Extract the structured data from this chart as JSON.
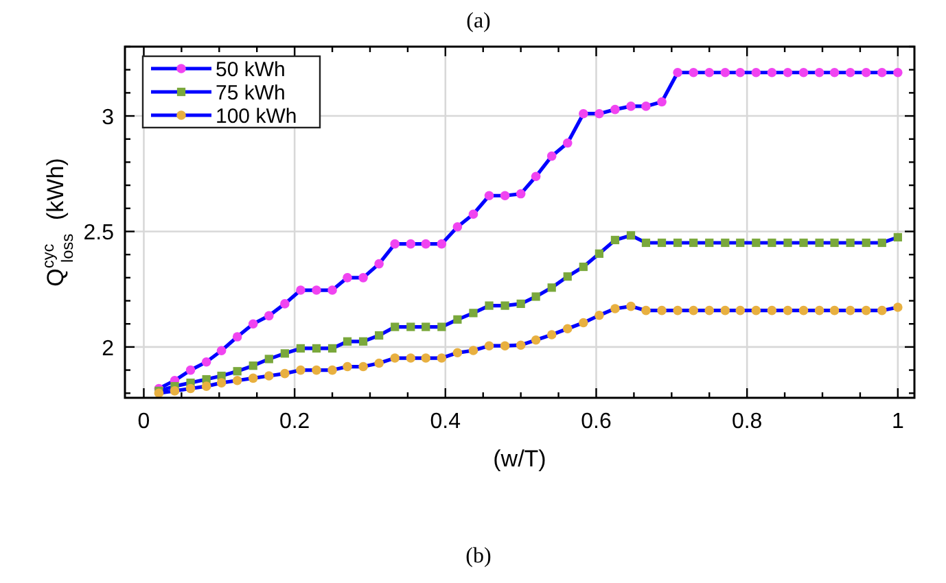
{
  "chart_data": {
    "type": "line",
    "title": "(a)",
    "xlabel": "(w/T)",
    "ylabel": "Q$^{cyc}$$_{loss}$ (kWh)",
    "annotations": [
      "(b)"
    ],
    "x": [
      0.02,
      0.041,
      0.062,
      0.083,
      0.103,
      0.124,
      0.145,
      0.166,
      0.187,
      0.208,
      0.229,
      0.25,
      0.27,
      0.291,
      0.312,
      0.333,
      0.354,
      0.374,
      0.395,
      0.416,
      0.437,
      0.458,
      0.479,
      0.5,
      0.52,
      0.541,
      0.562,
      0.583,
      0.604,
      0.625,
      0.646,
      0.666,
      0.687,
      0.708,
      0.729,
      0.75,
      0.771,
      0.791,
      0.812,
      0.833,
      0.854,
      0.875,
      0.896,
      0.916,
      0.937,
      0.958,
      0.979,
      1.0
    ],
    "series": [
      {
        "name": "50 kWh",
        "color": "#f044f0",
        "marker": "circle",
        "values": [
          1.82,
          1.855,
          1.9,
          1.935,
          1.984,
          2.044,
          2.1,
          2.135,
          2.187,
          2.246,
          2.246,
          2.246,
          2.3,
          2.3,
          2.36,
          2.446,
          2.446,
          2.446,
          2.446,
          2.52,
          2.575,
          2.655,
          2.655,
          2.663,
          2.738,
          2.826,
          2.883,
          3.01,
          3.01,
          3.028,
          3.042,
          3.042,
          3.061,
          3.188,
          3.188,
          3.188,
          3.188,
          3.188,
          3.188,
          3.188,
          3.188,
          3.188,
          3.188,
          3.188,
          3.188,
          3.188,
          3.188,
          3.188
        ]
      },
      {
        "name": "75 kWh",
        "color": "#7aa83c",
        "marker": "square",
        "values": [
          1.81,
          1.83,
          1.845,
          1.86,
          1.875,
          1.895,
          1.919,
          1.948,
          1.972,
          1.994,
          1.994,
          1.994,
          2.024,
          2.024,
          2.05,
          2.087,
          2.087,
          2.087,
          2.087,
          2.119,
          2.147,
          2.179,
          2.179,
          2.187,
          2.218,
          2.257,
          2.305,
          2.347,
          2.404,
          2.463,
          2.483,
          2.451,
          2.451,
          2.451,
          2.451,
          2.451,
          2.451,
          2.451,
          2.451,
          2.451,
          2.451,
          2.451,
          2.451,
          2.451,
          2.451,
          2.451,
          2.451,
          2.475
        ]
      },
      {
        "name": "100 kWh",
        "color": "#e8b040",
        "marker": "circle",
        "values": [
          1.8,
          1.81,
          1.82,
          1.83,
          1.845,
          1.855,
          1.865,
          1.875,
          1.885,
          1.9,
          1.9,
          1.9,
          1.915,
          1.915,
          1.93,
          1.952,
          1.952,
          1.952,
          1.952,
          1.975,
          1.985,
          2.005,
          2.005,
          2.008,
          2.03,
          2.053,
          2.079,
          2.105,
          2.137,
          2.166,
          2.176,
          2.158,
          2.158,
          2.158,
          2.158,
          2.158,
          2.158,
          2.158,
          2.158,
          2.158,
          2.158,
          2.158,
          2.158,
          2.158,
          2.158,
          2.158,
          2.158,
          2.172
        ]
      }
    ],
    "xlim": [
      -0.025,
      1.022
    ],
    "ylim": [
      1.78,
      3.3
    ],
    "xticks": [
      0,
      {
        "value": 0.05,
        "label": null
      },
      {
        "value": 0.1,
        "label": null
      },
      {
        "value": 0.15,
        "label": null
      },
      0.2,
      {
        "value": 0.25,
        "label": null
      },
      {
        "value": 0.3,
        "label": null
      },
      {
        "value": 0.35,
        "label": null
      },
      0.4,
      {
        "value": 0.45,
        "label": null
      },
      {
        "value": 0.5,
        "label": null
      },
      {
        "value": 0.55,
        "label": null
      },
      0.6,
      {
        "value": 0.65,
        "label": null
      },
      {
        "value": 0.7,
        "label": null
      },
      {
        "value": 0.75,
        "label": null
      },
      0.8,
      {
        "value": 0.85,
        "label": null
      },
      {
        "value": 0.9,
        "label": null
      },
      {
        "value": 0.95,
        "label": null
      },
      1
    ],
    "yticks": [
      {
        "value": 1.8,
        "label": null
      },
      {
        "value": 1.9,
        "label": null
      },
      2,
      {
        "value": 2.1,
        "label": null
      },
      {
        "value": 2.2,
        "label": null
      },
      {
        "value": 2.3,
        "label": null
      },
      {
        "value": 2.4,
        "label": null
      },
      2.5,
      {
        "value": 2.6,
        "label": null
      },
      {
        "value": 2.7,
        "label": null
      },
      {
        "value": 2.8,
        "label": null
      },
      {
        "value": 2.9,
        "label": null
      },
      3,
      {
        "value": 3.1,
        "label": null
      },
      {
        "value": 3.2,
        "label": null
      },
      {
        "value": 3.3,
        "label": null
      }
    ],
    "grid": true,
    "legend": "top left",
    "line_style": "solid"
  }
}
